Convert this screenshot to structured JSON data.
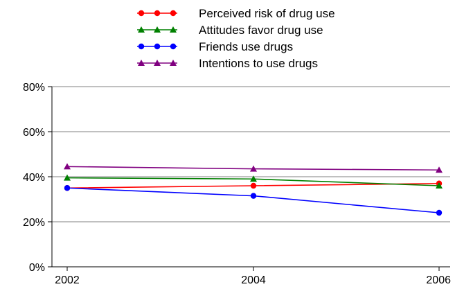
{
  "chart_data": {
    "type": "line",
    "x": [
      "2002",
      "2004",
      "2006"
    ],
    "ylim": [
      0,
      80
    ],
    "y_ticks": [
      0,
      20,
      40,
      60,
      80
    ],
    "y_tick_labels": [
      "0%",
      "20%",
      "40%",
      "60%",
      "80%"
    ],
    "grid": "horizontal",
    "legend_position": "top",
    "series": [
      {
        "name": "Perceived risk of drug use",
        "color": "#ff0000",
        "marker": "circle",
        "values": [
          35,
          36,
          37
        ]
      },
      {
        "name": "Attitudes favor drug use",
        "color": "#008000",
        "marker": "triangle",
        "values": [
          39.5,
          39,
          36
        ]
      },
      {
        "name": "Friends use drugs",
        "color": "#0000ff",
        "marker": "circle",
        "values": [
          35,
          31.5,
          24
        ]
      },
      {
        "name": "Intentions to use drugs",
        "color": "#800080",
        "marker": "triangle",
        "values": [
          44.5,
          43.5,
          43
        ]
      }
    ]
  }
}
